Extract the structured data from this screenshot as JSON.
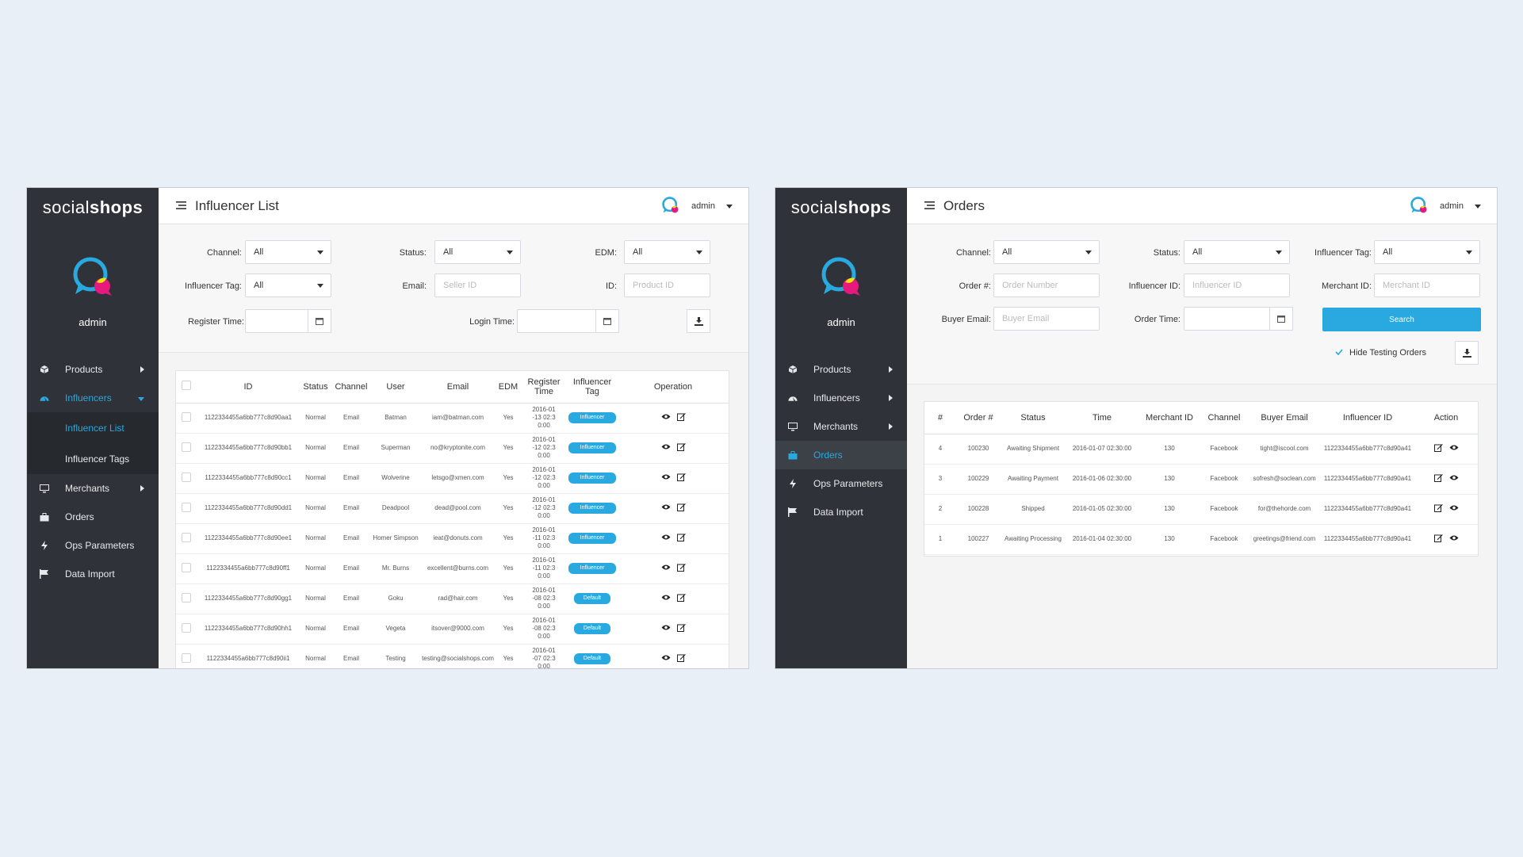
{
  "brand": {
    "part1": "social",
    "part2": "shops"
  },
  "colors": {
    "accent": "#29a9e0",
    "sidebar": "#2f3238",
    "bg": "#e8eff6"
  },
  "panel1": {
    "title": "Influencer List",
    "user": "admin",
    "sidebar": {
      "username": "admin",
      "items": [
        {
          "label": "Products",
          "icon": "cube-icon"
        },
        {
          "label": "Influencers",
          "icon": "dashboard-icon"
        },
        {
          "label": "Influencer List"
        },
        {
          "label": "Influencer Tags"
        },
        {
          "label": "Merchants",
          "icon": "monitor-icon"
        },
        {
          "label": "Orders",
          "icon": "briefcase-icon"
        },
        {
          "label": "Ops Parameters",
          "icon": "bolt-icon"
        },
        {
          "label": "Data Import",
          "icon": "flag-icon"
        }
      ]
    },
    "filters": {
      "channel_label": "Channel:",
      "channel_value": "All",
      "status_label": "Status:",
      "status_value": "All",
      "edm_label": "EDM:",
      "edm_value": "All",
      "tag_label": "Influencer Tag:",
      "tag_value": "All",
      "email_label": "Email:",
      "email_placeholder": "Seller ID",
      "id_label": "ID:",
      "id_placeholder": "Product ID",
      "register_label": "Register Time:",
      "login_label": "Login Time:"
    },
    "table": {
      "headers": [
        "ID",
        "Status",
        "Channel",
        "User",
        "Email",
        "EDM",
        "Register Time",
        "Influencer Tag",
        "Operation"
      ],
      "rows": [
        {
          "id": "1122334455a6bb777c8d90aa1",
          "status": "Normal",
          "channel": "Email",
          "user": "Batman",
          "email": "iam@batman.com",
          "edm": "Yes",
          "time": "2016-01-13 02:30:00",
          "tag": "Influencer"
        },
        {
          "id": "1122334455a6bb777c8d90bb1",
          "status": "Normal",
          "channel": "Email",
          "user": "Superman",
          "email": "no@kryptonite.com",
          "edm": "Yes",
          "time": "2016-01-12 02:30:00",
          "tag": "Influencer"
        },
        {
          "id": "1122334455a6bb777c8d90cc1",
          "status": "Normal",
          "channel": "Email",
          "user": "Wolverine",
          "email": "letsgo@xmen.com",
          "edm": "Yes",
          "time": "2016-01-12 02:30:00",
          "tag": "Influencer"
        },
        {
          "id": "1122334455a6bb777c8d90dd1",
          "status": "Normal",
          "channel": "Email",
          "user": "Deadpool",
          "email": "dead@pool.com",
          "edm": "Yes",
          "time": "2016-01-12 02:30:00",
          "tag": "Influencer"
        },
        {
          "id": "1122334455a6bb777c8d90ee1",
          "status": "Normal",
          "channel": "Email",
          "user": "Homer Simpson",
          "email": "ieat@donuts.com",
          "edm": "Yes",
          "time": "2016-01-11 02:30:00",
          "tag": "Influencer"
        },
        {
          "id": "1122334455a6bb777c8d90ff1",
          "status": "Normal",
          "channel": "Email",
          "user": "Mr. Burns",
          "email": "excellent@burns.com",
          "edm": "Yes",
          "time": "2016-01-11 02:30:00",
          "tag": "Influencer"
        },
        {
          "id": "1122334455a6bb777c8d90gg1",
          "status": "Normal",
          "channel": "Email",
          "user": "Goku",
          "email": "rad@hair.com",
          "edm": "Yes",
          "time": "2016-01-08 02:30:00",
          "tag": "Default"
        },
        {
          "id": "1122334455a6bb777c8d90hh1",
          "status": "Normal",
          "channel": "Email",
          "user": "Vegeta",
          "email": "itsover@9000.com",
          "edm": "Yes",
          "time": "2016-01-08 02:30:00",
          "tag": "Default"
        },
        {
          "id": "1122334455a6bb777c8d90ii1",
          "status": "Normal",
          "channel": "Email",
          "user": "Testing",
          "email": "testing@socialshops.com",
          "edm": "Yes",
          "time": "2016-01-07 02:30:00",
          "tag": "Default"
        }
      ]
    }
  },
  "panel2": {
    "title": "Orders",
    "user": "admin",
    "sidebar": {
      "username": "admin",
      "items": [
        {
          "label": "Products",
          "icon": "cube-icon"
        },
        {
          "label": "Influencers",
          "icon": "dashboard-icon"
        },
        {
          "label": "Merchants",
          "icon": "monitor-icon"
        },
        {
          "label": "Orders",
          "icon": "briefcase-icon"
        },
        {
          "label": "Ops Parameters",
          "icon": "bolt-icon"
        },
        {
          "label": "Data Import",
          "icon": "flag-icon"
        }
      ]
    },
    "filters": {
      "channel_label": "Channel:",
      "channel_value": "All",
      "status_label": "Status:",
      "status_value": "All",
      "tag_label": "Influencer Tag:",
      "tag_value": "All",
      "order_label": "Order #:",
      "order_placeholder": "Order Number",
      "infid_label": "Influencer ID:",
      "infid_placeholder": "Influencer ID",
      "merchid_label": "Merchant ID:",
      "merchid_placeholder": "Merchant ID",
      "buyer_label": "Buyer Email:",
      "buyer_placeholder": "Buyer Email",
      "time_label": "Order Time:",
      "search_label": "Search",
      "hide_testing_label": "Hide Testing Orders"
    },
    "table": {
      "headers": [
        "#",
        "Order #",
        "Status",
        "Time",
        "Merchant ID",
        "Channel",
        "Buyer Email",
        "Influencer ID",
        "Action"
      ],
      "rows": [
        {
          "n": "4",
          "order": "100230",
          "status": "Awaiting Shipment",
          "time": "2016-01-07 02:30:00",
          "merchant": "130",
          "channel": "Facebook",
          "email": "tight@iscool.com",
          "inf": "1122334455a6bb777c8d90a41"
        },
        {
          "n": "3",
          "order": "100229",
          "status": "Awaiting Payment",
          "time": "2016-01-06 02:30:00",
          "merchant": "130",
          "channel": "Facebook",
          "email": "sofresh@soclean.com",
          "inf": "1122334455a6bb777c8d90a41"
        },
        {
          "n": "2",
          "order": "100228",
          "status": "Shipped",
          "time": "2016-01-05 02:30:00",
          "merchant": "130",
          "channel": "Facebook",
          "email": "for@thehorde.com",
          "inf": "1122334455a6bb777c8d90a41"
        },
        {
          "n": "1",
          "order": "100227",
          "status": "Awaiting Processing",
          "time": "2016-01-04 02:30:00",
          "merchant": "130",
          "channel": "Facebook",
          "email": "greetings@friend.com",
          "inf": "1122334455a6bb777c8d90a41"
        }
      ]
    }
  }
}
